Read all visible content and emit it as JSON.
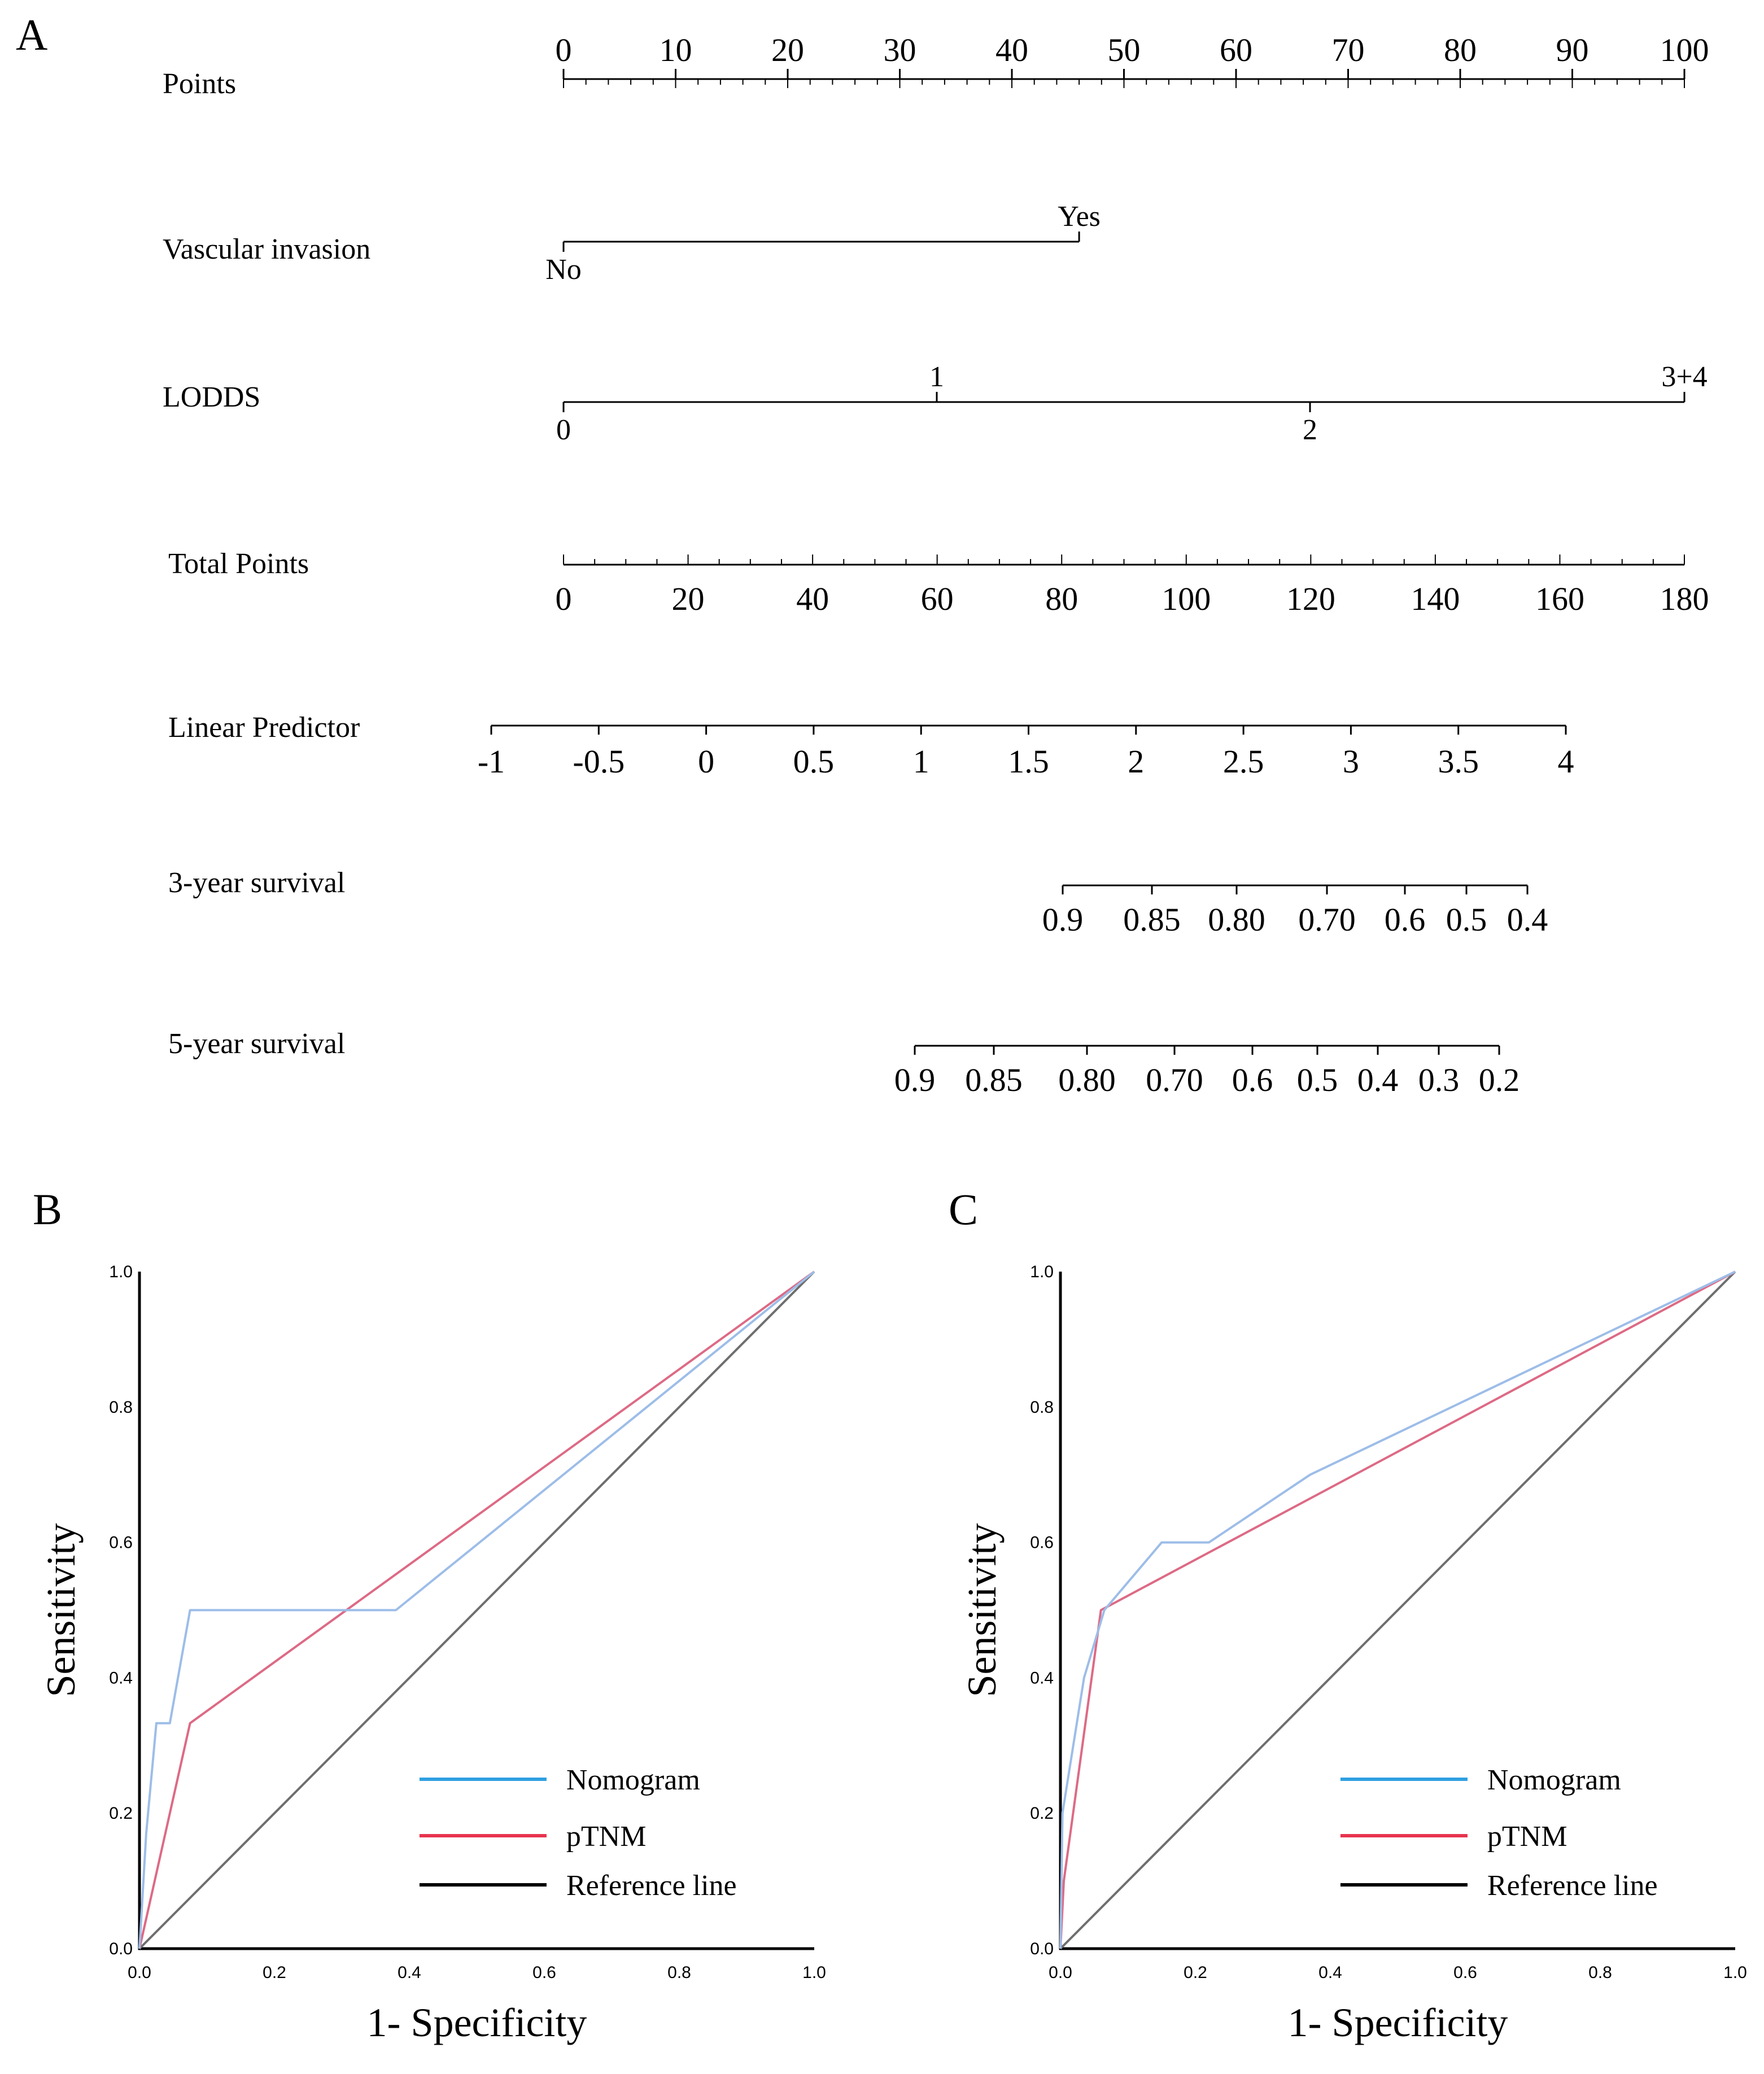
{
  "panels": {
    "A": "A",
    "B": "B",
    "C": "C"
  },
  "colors": {
    "nomogram": "#9dbde8",
    "ptnm": "#dd6a85",
    "reference": "#6e6e6e",
    "legend_nomogram": "#2f9fe0",
    "legend_ptnm": "#e8334f",
    "legend_reference": "#000000"
  },
  "nomogram": {
    "rows": [
      {
        "id": "points",
        "label": "Points",
        "ticks": [
          "0",
          "10",
          "20",
          "30",
          "40",
          "50",
          "60",
          "70",
          "80",
          "90",
          "100"
        ]
      },
      {
        "id": "vascular",
        "label": "Vascular invasion",
        "values": [
          {
            "text": "No",
            "points": 0,
            "side": "below"
          },
          {
            "text": "Yes",
            "points": 46,
            "side": "above"
          }
        ]
      },
      {
        "id": "lodds",
        "label": "LODDS",
        "values": [
          {
            "text": "0",
            "points": 0,
            "side": "below"
          },
          {
            "text": "1",
            "points": 33.3,
            "side": "above"
          },
          {
            "text": "2",
            "points": 66.6,
            "side": "below"
          },
          {
            "text": "3+4",
            "points": 100,
            "side": "above"
          }
        ]
      },
      {
        "id": "total",
        "label": "Total Points",
        "ticks": [
          "0",
          "20",
          "40",
          "60",
          "80",
          "100",
          "120",
          "140",
          "160",
          "180"
        ]
      },
      {
        "id": "linear",
        "label": "Linear Predictor",
        "ticks": [
          "-1",
          "-0.5",
          "0",
          "0.5",
          "1",
          "1.5",
          "2",
          "2.5",
          "3",
          "3.5",
          "4"
        ]
      },
      {
        "id": "surv3",
        "label": "3-year survival",
        "ticks": [
          "0.9",
          "0.85",
          "0.80",
          "0.70",
          "0.6",
          "0.5",
          "0.4"
        ]
      },
      {
        "id": "surv5",
        "label": "5-year survival",
        "ticks": [
          "0.9",
          "0.85",
          "0.80",
          "0.70",
          "0.6",
          "0.5",
          "0.4",
          "0.3",
          "0.2"
        ]
      }
    ]
  },
  "chart_data": [
    {
      "type": "line",
      "panel": "B",
      "xlabel": "1- Specificity",
      "ylabel": "Sensitivity",
      "xlim": [
        0,
        1
      ],
      "ylim": [
        0,
        1
      ],
      "xticks": [
        "0.0",
        "0.2",
        "0.4",
        "0.6",
        "0.8",
        "1.0"
      ],
      "yticks": [
        "0.0",
        "0.2",
        "0.4",
        "0.6",
        "0.8",
        "1.0"
      ],
      "legend": "bottom-right",
      "series": [
        {
          "name": "Nomogram",
          "x": [
            0,
            0.01,
            0.025,
            0.045,
            0.075,
            0.38,
            1.0
          ],
          "y": [
            0,
            0.17,
            0.333,
            0.333,
            0.5,
            0.5,
            1.0
          ]
        },
        {
          "name": "pTNM",
          "x": [
            0,
            0.075,
            1.0
          ],
          "y": [
            0,
            0.333,
            1.0
          ]
        },
        {
          "name": "Reference line",
          "x": [
            0,
            1
          ],
          "y": [
            0,
            1
          ]
        }
      ]
    },
    {
      "type": "line",
      "panel": "C",
      "xlabel": "1- Specificity",
      "ylabel": "Sensitivity",
      "xlim": [
        0,
        1
      ],
      "ylim": [
        0,
        1
      ],
      "xticks": [
        "0.0",
        "0.2",
        "0.4",
        "0.6",
        "0.8",
        "1.0"
      ],
      "yticks": [
        "0.0",
        "0.2",
        "0.4",
        "0.6",
        "0.8",
        "1.0"
      ],
      "legend": "bottom-right",
      "series": [
        {
          "name": "Nomogram",
          "x": [
            0,
            0.003,
            0.035,
            0.065,
            0.15,
            0.22,
            0.37,
            1.0
          ],
          "y": [
            0,
            0.2,
            0.4,
            0.5,
            0.6,
            0.6,
            0.7,
            1.0
          ]
        },
        {
          "name": "pTNM",
          "x": [
            0,
            0.005,
            0.06,
            1.0
          ],
          "y": [
            0,
            0.1,
            0.5,
            1.0
          ]
        },
        {
          "name": "Reference line",
          "x": [
            0,
            1
          ],
          "y": [
            0,
            1
          ]
        }
      ]
    }
  ]
}
